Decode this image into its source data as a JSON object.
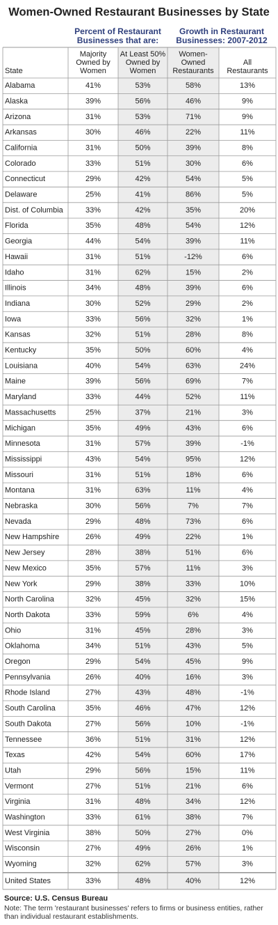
{
  "header": {
    "title": "Women-Owned Restaurant Businesses by State",
    "groups": [
      [
        "Percent of Restaurant",
        "Businesses that are:"
      ],
      [
        "Growth in Restaurant",
        "Businesses: 2007-2012"
      ]
    ]
  },
  "table": {
    "columns": [
      [
        "State"
      ],
      [
        "Majority",
        "Owned by",
        "Women"
      ],
      [
        "At Least 50%",
        "Owned by",
        "Women"
      ],
      [
        "Women-",
        "Owned",
        "Restaurants"
      ],
      [
        "All",
        "Restaurants"
      ]
    ],
    "rows": [
      [
        "Alabama",
        "41%",
        "53%",
        "58%",
        "13%"
      ],
      [
        "Alaska",
        "39%",
        "56%",
        "46%",
        "9%"
      ],
      [
        "Arizona",
        "31%",
        "53%",
        "71%",
        "9%"
      ],
      [
        "Arkansas",
        "30%",
        "46%",
        "22%",
        "11%"
      ],
      [
        "California",
        "31%",
        "50%",
        "39%",
        "8%"
      ],
      [
        "Colorado",
        "33%",
        "51%",
        "30%",
        "6%"
      ],
      [
        "Connecticut",
        "29%",
        "42%",
        "54%",
        "5%"
      ],
      [
        "Delaware",
        "25%",
        "41%",
        "86%",
        "5%"
      ],
      [
        "Dist. of Columbia",
        "33%",
        "42%",
        "35%",
        "20%"
      ],
      [
        "Florida",
        "35%",
        "48%",
        "54%",
        "12%"
      ],
      [
        "Georgia",
        "44%",
        "54%",
        "39%",
        "11%"
      ],
      [
        "Hawaii",
        "31%",
        "51%",
        "-12%",
        "6%"
      ],
      [
        "Idaho",
        "31%",
        "62%",
        "15%",
        "2%"
      ],
      [
        "Illinois",
        "34%",
        "48%",
        "39%",
        "6%"
      ],
      [
        "Indiana",
        "30%",
        "52%",
        "29%",
        "2%"
      ],
      [
        "Iowa",
        "33%",
        "56%",
        "32%",
        "1%"
      ],
      [
        "Kansas",
        "32%",
        "51%",
        "28%",
        "8%"
      ],
      [
        "Kentucky",
        "35%",
        "50%",
        "60%",
        "4%"
      ],
      [
        "Louisiana",
        "40%",
        "54%",
        "63%",
        "24%"
      ],
      [
        "Maine",
        "39%",
        "56%",
        "69%",
        "7%"
      ],
      [
        "Maryland",
        "33%",
        "44%",
        "52%",
        "11%"
      ],
      [
        "Massachusetts",
        "25%",
        "37%",
        "21%",
        "3%"
      ],
      [
        "Michigan",
        "35%",
        "49%",
        "43%",
        "6%"
      ],
      [
        "Minnesota",
        "31%",
        "57%",
        "39%",
        "-1%"
      ],
      [
        "Mississippi",
        "43%",
        "54%",
        "95%",
        "12%"
      ],
      [
        "Missouri",
        "31%",
        "51%",
        "18%",
        "6%"
      ],
      [
        "Montana",
        "31%",
        "63%",
        "11%",
        "4%"
      ],
      [
        "Nebraska",
        "30%",
        "56%",
        "7%",
        "7%"
      ],
      [
        "Nevada",
        "29%",
        "48%",
        "73%",
        "6%"
      ],
      [
        "New Hampshire",
        "26%",
        "49%",
        "22%",
        "1%"
      ],
      [
        "New Jersey",
        "28%",
        "38%",
        "51%",
        "6%"
      ],
      [
        "New Mexico",
        "35%",
        "57%",
        "11%",
        "3%"
      ],
      [
        "New York",
        "29%",
        "38%",
        "33%",
        "10%"
      ],
      [
        "North Carolina",
        "32%",
        "45%",
        "32%",
        "15%"
      ],
      [
        "North Dakota",
        "33%",
        "59%",
        "6%",
        "4%"
      ],
      [
        "Ohio",
        "31%",
        "45%",
        "28%",
        "3%"
      ],
      [
        "Oklahoma",
        "34%",
        "51%",
        "43%",
        "5%"
      ],
      [
        "Oregon",
        "29%",
        "54%",
        "45%",
        "9%"
      ],
      [
        "Pennsylvania",
        "26%",
        "40%",
        "16%",
        "3%"
      ],
      [
        "Rhode Island",
        "27%",
        "43%",
        "48%",
        "-1%"
      ],
      [
        "South Carolina",
        "35%",
        "46%",
        "47%",
        "12%"
      ],
      [
        "South Dakota",
        "27%",
        "56%",
        "10%",
        "-1%"
      ],
      [
        "Tennessee",
        "36%",
        "51%",
        "31%",
        "12%"
      ],
      [
        "Texas",
        "42%",
        "54%",
        "60%",
        "17%"
      ],
      [
        "Utah",
        "29%",
        "56%",
        "15%",
        "11%"
      ],
      [
        "Vermont",
        "27%",
        "51%",
        "21%",
        "6%"
      ],
      [
        "Virginia",
        "31%",
        "48%",
        "34%",
        "12%"
      ],
      [
        "Washington",
        "33%",
        "61%",
        "38%",
        "7%"
      ],
      [
        "West Virginia",
        "38%",
        "50%",
        "27%",
        "0%"
      ],
      [
        "Wisconsin",
        "27%",
        "49%",
        "26%",
        "1%"
      ],
      [
        "Wyoming",
        "32%",
        "62%",
        "57%",
        "3%"
      ],
      [
        "United States",
        "33%",
        "48%",
        "40%",
        "12%"
      ]
    ]
  },
  "footer": {
    "source": "Source: U.S. Census Bureau",
    "note": "Note: The term 'restaurant businesses' refers to firms or business entities, rather than individual restaurant establishments."
  }
}
